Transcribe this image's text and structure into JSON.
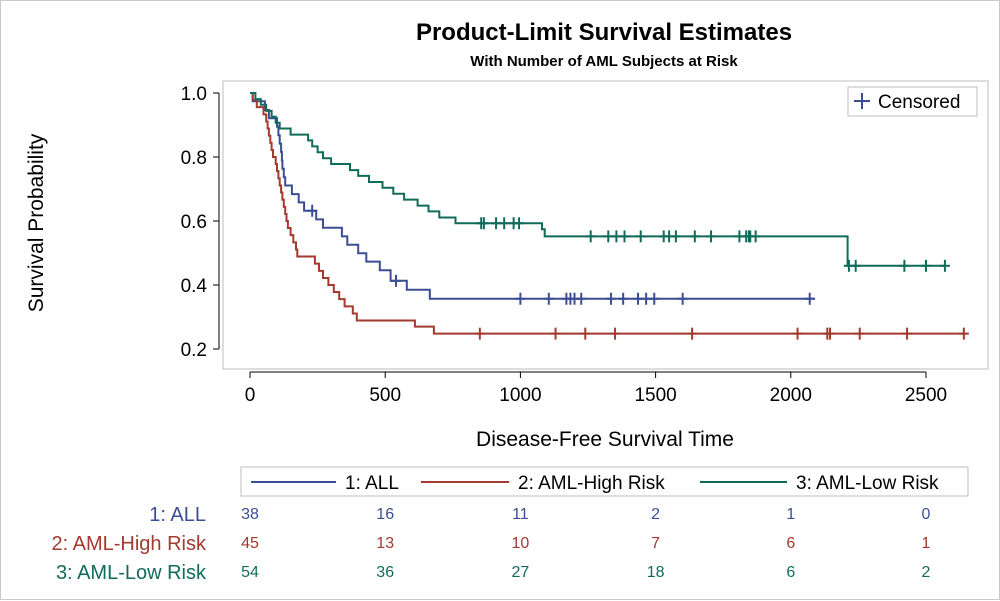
{
  "colors": {
    "ALL": "#3b4e94",
    "AML-High Risk": "#a23a2f",
    "AML-Low Risk": "#116b5b",
    "censor_legend": "#3b4e94"
  },
  "chart_data": {
    "type": "line",
    "subtype": "kaplan-meier step",
    "title": "Product-Limit Survival Estimates",
    "subtitle": "With Number of AML Subjects at Risk",
    "xlabel": "Disease-Free Survival Time",
    "ylabel": "Survival Probability",
    "xlim": [
      -100,
      2750
    ],
    "ylim": [
      0.15,
      1.04
    ],
    "x_ticks": [
      0,
      500,
      1000,
      1500,
      2000,
      2500
    ],
    "y_ticks": [
      0.2,
      0.4,
      0.6,
      0.8,
      1.0
    ],
    "y_tick_labels": [
      "0.2",
      "0.4",
      "0.6",
      "0.8",
      "1.0"
    ],
    "grid": false,
    "inset_legend": {
      "symbol": "+",
      "label": "Censored",
      "placement": "top-right"
    },
    "legend": {
      "placement": "bottom",
      "entries": [
        "1: ALL",
        "2: AML-High Risk",
        "3: AML-Low Risk"
      ]
    },
    "series": [
      {
        "name": "1: ALL",
        "steps": [
          [
            0,
            1.0
          ],
          [
            10,
            0.974
          ],
          [
            55,
            0.947
          ],
          [
            70,
            0.921
          ],
          [
            100,
            0.895
          ],
          [
            105,
            0.868
          ],
          [
            110,
            0.842
          ],
          [
            115,
            0.816
          ],
          [
            118,
            0.789
          ],
          [
            120,
            0.763
          ],
          [
            125,
            0.737
          ],
          [
            130,
            0.711
          ],
          [
            155,
            0.684
          ],
          [
            180,
            0.658
          ],
          [
            200,
            0.632
          ],
          [
            245,
            0.605
          ],
          [
            270,
            0.579
          ],
          [
            340,
            0.552
          ],
          [
            360,
            0.526
          ],
          [
            400,
            0.499
          ],
          [
            430,
            0.473
          ],
          [
            480,
            0.446
          ],
          [
            520,
            0.413
          ],
          [
            580,
            0.385
          ],
          [
            665,
            0.357
          ],
          [
            2090,
            0.357
          ]
        ],
        "censored": [
          [
            230,
            0.632
          ],
          [
            540,
            0.413
          ],
          [
            1000,
            0.357
          ],
          [
            1105,
            0.357
          ],
          [
            1170,
            0.357
          ],
          [
            1185,
            0.357
          ],
          [
            1200,
            0.357
          ],
          [
            1225,
            0.357
          ],
          [
            1335,
            0.357
          ],
          [
            1380,
            0.357
          ],
          [
            1435,
            0.357
          ],
          [
            1465,
            0.357
          ],
          [
            1495,
            0.357
          ],
          [
            1600,
            0.357
          ],
          [
            2070,
            0.357
          ]
        ]
      },
      {
        "name": "2: AML-High Risk",
        "steps": [
          [
            0,
            1.0
          ],
          [
            10,
            0.978
          ],
          [
            25,
            0.956
          ],
          [
            50,
            0.933
          ],
          [
            60,
            0.911
          ],
          [
            65,
            0.889
          ],
          [
            70,
            0.867
          ],
          [
            75,
            0.844
          ],
          [
            80,
            0.822
          ],
          [
            85,
            0.8
          ],
          [
            95,
            0.778
          ],
          [
            100,
            0.756
          ],
          [
            105,
            0.733
          ],
          [
            110,
            0.711
          ],
          [
            115,
            0.689
          ],
          [
            120,
            0.667
          ],
          [
            125,
            0.644
          ],
          [
            130,
            0.622
          ],
          [
            135,
            0.6
          ],
          [
            140,
            0.578
          ],
          [
            150,
            0.556
          ],
          [
            160,
            0.533
          ],
          [
            170,
            0.511
          ],
          [
            175,
            0.489
          ],
          [
            240,
            0.467
          ],
          [
            255,
            0.444
          ],
          [
            270,
            0.422
          ],
          [
            290,
            0.4
          ],
          [
            310,
            0.378
          ],
          [
            330,
            0.356
          ],
          [
            350,
            0.333
          ],
          [
            380,
            0.311
          ],
          [
            395,
            0.289
          ],
          [
            500,
            0.289
          ],
          [
            610,
            0.27
          ],
          [
            680,
            0.248
          ],
          [
            2650,
            0.248
          ]
        ],
        "censored": [
          [
            850,
            0.248
          ],
          [
            1130,
            0.248
          ],
          [
            1240,
            0.248
          ],
          [
            1350,
            0.248
          ],
          [
            1635,
            0.248
          ],
          [
            2025,
            0.248
          ],
          [
            2135,
            0.248
          ],
          [
            2145,
            0.248
          ],
          [
            2255,
            0.248
          ],
          [
            2430,
            0.248
          ],
          [
            2640,
            0.248
          ]
        ]
      },
      {
        "name": "3: AML-Low Risk",
        "steps": [
          [
            0,
            1.0
          ],
          [
            20,
            0.981
          ],
          [
            40,
            0.963
          ],
          [
            60,
            0.944
          ],
          [
            80,
            0.926
          ],
          [
            95,
            0.907
          ],
          [
            110,
            0.889
          ],
          [
            150,
            0.87
          ],
          [
            200,
            0.87
          ],
          [
            215,
            0.852
          ],
          [
            230,
            0.833
          ],
          [
            250,
            0.815
          ],
          [
            270,
            0.796
          ],
          [
            300,
            0.778
          ],
          [
            370,
            0.759
          ],
          [
            400,
            0.741
          ],
          [
            440,
            0.722
          ],
          [
            490,
            0.704
          ],
          [
            530,
            0.685
          ],
          [
            570,
            0.667
          ],
          [
            620,
            0.648
          ],
          [
            660,
            0.63
          ],
          [
            700,
            0.611
          ],
          [
            760,
            0.593
          ],
          [
            1080,
            0.574
          ],
          [
            1090,
            0.552
          ],
          [
            2200,
            0.552
          ],
          [
            2210,
            0.46
          ],
          [
            2570,
            0.46
          ]
        ],
        "censored": [
          [
            855,
            0.593
          ],
          [
            865,
            0.593
          ],
          [
            910,
            0.593
          ],
          [
            940,
            0.593
          ],
          [
            975,
            0.593
          ],
          [
            995,
            0.593
          ],
          [
            1260,
            0.552
          ],
          [
            1325,
            0.552
          ],
          [
            1355,
            0.552
          ],
          [
            1385,
            0.552
          ],
          [
            1445,
            0.552
          ],
          [
            1530,
            0.552
          ],
          [
            1550,
            0.552
          ],
          [
            1575,
            0.552
          ],
          [
            1645,
            0.552
          ],
          [
            1705,
            0.552
          ],
          [
            1810,
            0.552
          ],
          [
            1835,
            0.552
          ],
          [
            1845,
            0.552
          ],
          [
            1850,
            0.552
          ],
          [
            1870,
            0.552
          ],
          [
            2215,
            0.46
          ],
          [
            2240,
            0.46
          ],
          [
            2420,
            0.46
          ],
          [
            2500,
            0.46
          ],
          [
            2570,
            0.46
          ]
        ]
      }
    ],
    "risk_table": {
      "times": [
        0,
        500,
        1000,
        1500,
        2000,
        2500
      ],
      "rows": [
        {
          "label": "1: ALL",
          "values": [
            38,
            16,
            11,
            2,
            1,
            0
          ]
        },
        {
          "label": "2: AML-High Risk",
          "values": [
            45,
            13,
            10,
            7,
            6,
            1
          ]
        },
        {
          "label": "3: AML-Low Risk",
          "values": [
            54,
            36,
            27,
            18,
            6,
            2
          ]
        }
      ]
    }
  }
}
